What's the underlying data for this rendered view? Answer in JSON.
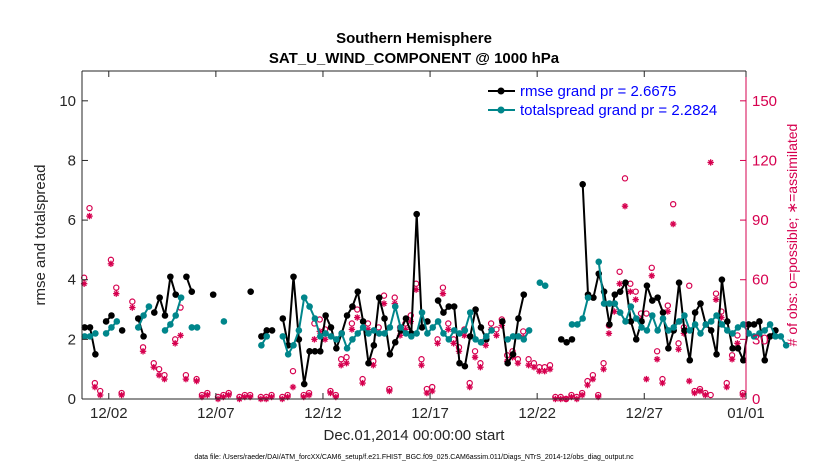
{
  "chart_data": {
    "type": "line",
    "title_line1": "Southern Hemisphere",
    "title_line2": "SAT_U_WIND_COMPONENT @ 1000 hPa",
    "xlabel": "Dec.01,2014 00:00:00 start",
    "ylabel_left": "rmse and totalspread",
    "ylabel_right": "# of obs: o=possible; ∗=assimilated",
    "footer": "data file: /Users/raeder/DAI/ATM_forcXX/CAM6_setup/f.e21.FHIST_BGC.f09_025.CAM6assim.011/Diags_NTrS_2014-12/obs_diag_output.nc",
    "xlim": [
      0.5,
      31.5
    ],
    "ylim_left": [
      0,
      11
    ],
    "ylim_right": [
      0,
      165
    ],
    "x_ticks": [
      1.75,
      6.75,
      11.75,
      16.75,
      21.75,
      26.75,
      31.75
    ],
    "x_tick_labels": [
      "12/02",
      "12/07",
      "12/12",
      "12/17",
      "12/22",
      "12/27",
      "01/01"
    ],
    "y_ticks_left": [
      0,
      2,
      4,
      6,
      8,
      10
    ],
    "y_tick_labels_left": [
      "0",
      "2",
      "4",
      "6",
      "8",
      "10"
    ],
    "y_ticks_right": [
      0,
      30,
      60,
      90,
      120,
      150
    ],
    "y_tick_labels_right": [
      "0",
      "30",
      "60",
      "90",
      "120",
      "150"
    ],
    "colors": {
      "rmse": "#000000",
      "spread": "#00868b",
      "obs": "#d6004f",
      "legend_text": "#0000ff"
    },
    "series": [
      {
        "name": "rmse grand pr = 2.6675",
        "color": "#000000",
        "values": [
          2.4,
          2.4,
          1.5,
          null,
          2.6,
          2.8,
          null,
          2.3,
          null,
          null,
          2.7,
          2.1,
          null,
          2.9,
          3.4,
          2.8,
          4.1,
          3.5,
          null,
          4.1,
          3.6,
          null,
          null,
          null,
          3.5,
          null,
          null,
          null,
          null,
          null,
          null,
          3.6,
          null,
          2.1,
          2.3,
          2.3,
          null,
          2.7,
          1.8,
          4.1,
          2.0,
          0.5,
          1.6,
          1.6,
          1.6,
          2.8,
          2.4,
          1.7,
          2.2,
          2.8,
          3.1,
          3.6,
          2.6,
          1.2,
          1.8,
          3.4,
          2.7,
          1.5,
          1.9,
          2.3,
          2.7,
          2.2,
          6.2,
          2.4,
          2.6,
          null,
          3.3,
          2.9,
          3.1,
          3.1,
          1.2,
          1.1,
          2.1,
          3.0,
          2.4,
          2.0,
          null,
          null,
          2.6,
          1.2,
          1.5,
          2.7,
          3.5,
          null,
          null,
          null,
          null,
          null,
          null,
          2.0,
          1.9,
          2.0,
          null,
          7.2,
          3.5,
          3.4,
          4.2,
          3.6,
          2.5,
          3.5,
          3.6,
          3.9,
          2.6,
          2.0,
          2.6,
          3.8,
          3.3,
          3.4,
          2.9,
          1.7,
          2.3,
          3.9,
          2.3,
          1.3,
          2.9,
          3.2,
          2.5,
          2.3,
          1.5,
          4.0,
          2.6,
          1.7,
          1.7,
          1.3,
          2.5,
          2.5,
          2.6,
          1.3,
          2.1,
          2.3
        ]
      },
      {
        "name": "totalspread grand pr = 2.2824",
        "color": "#00868b",
        "values": [
          2.1,
          2.1,
          2.2,
          null,
          2.2,
          2.4,
          2.6,
          null,
          null,
          null,
          2.4,
          2.8,
          3.1,
          null,
          null,
          2.3,
          2.5,
          2.8,
          3.4,
          null,
          2.4,
          2.4,
          null,
          null,
          null,
          null,
          2.6,
          null,
          null,
          null,
          null,
          null,
          null,
          1.8,
          2.1,
          null,
          null,
          2.1,
          1.5,
          1.8,
          2.3,
          3.4,
          3.1,
          2.7,
          2.1,
          2.2,
          2.1,
          2.0,
          2.2,
          1.7,
          2.0,
          2.2,
          2.4,
          2.2,
          2.3,
          2.2,
          2.2,
          2.4,
          3.1,
          2.4,
          2.2,
          2.1,
          2.2,
          2.9,
          2.2,
          2.4,
          2.6,
          2.2,
          2.0,
          2.3,
          2.2,
          2.3,
          2.9,
          2.0,
          1.9,
          2.1,
          2.3,
          null,
          null,
          2.0,
          2.1,
          2.1,
          2.0,
          2.3,
          null,
          3.9,
          3.8,
          null,
          null,
          null,
          null,
          2.5,
          2.5,
          2.7,
          3.4,
          null,
          4.6,
          3.2,
          3.2,
          3.2,
          2.9,
          2.6,
          3.1,
          2.7,
          2.4,
          2.3,
          2.8,
          2.3,
          2.7,
          2.3,
          2.4,
          2.6,
          2.8,
          2.3,
          2.5,
          2.2,
          2.5,
          2.6,
          2.8,
          2.5,
          2.3,
          2.2,
          2.4,
          2.5,
          2.2,
          2.1,
          2.2,
          2.3,
          2.5,
          2.1,
          2.1,
          1.8
        ]
      }
    ],
    "obs_possible": [
      [
        0.6,
        61
      ],
      [
        0.85,
        96
      ],
      [
        1.1,
        8
      ],
      [
        1.35,
        4
      ],
      [
        1.85,
        70
      ],
      [
        2.1,
        56
      ],
      [
        2.35,
        3
      ],
      [
        2.85,
        49
      ],
      [
        3.35,
        26
      ],
      [
        3.85,
        18
      ],
      [
        4.1,
        15
      ],
      [
        4.35,
        12
      ],
      [
        4.85,
        30
      ],
      [
        5.1,
        46
      ],
      [
        5.35,
        12
      ],
      [
        5.85,
        10
      ],
      [
        6.1,
        2
      ],
      [
        6.35,
        3
      ],
      [
        6.85,
        1
      ],
      [
        7.1,
        2
      ],
      [
        7.35,
        3
      ],
      [
        7.85,
        1
      ],
      [
        8.1,
        2
      ],
      [
        8.35,
        2
      ],
      [
        8.85,
        1
      ],
      [
        9.1,
        1
      ],
      [
        9.35,
        2
      ],
      [
        9.85,
        1
      ],
      [
        10.1,
        2
      ],
      [
        10.35,
        14
      ],
      [
        10.85,
        2
      ],
      [
        11.1,
        3
      ],
      [
        11.35,
        38
      ],
      [
        11.6,
        40
      ],
      [
        11.85,
        35
      ],
      [
        12.1,
        4
      ],
      [
        12.35,
        2
      ],
      [
        12.6,
        20
      ],
      [
        12.85,
        21
      ],
      [
        13.1,
        38
      ],
      [
        13.35,
        45
      ],
      [
        13.6,
        10
      ],
      [
        13.85,
        38
      ],
      [
        14.1,
        19
      ],
      [
        14.35,
        36
      ],
      [
        14.6,
        52
      ],
      [
        14.85,
        5
      ],
      [
        15.1,
        51
      ],
      [
        15.35,
        36
      ],
      [
        15.6,
        38
      ],
      [
        15.85,
        42
      ],
      [
        16.1,
        58
      ],
      [
        16.35,
        20
      ],
      [
        16.6,
        5
      ],
      [
        16.85,
        6
      ],
      [
        17.1,
        30
      ],
      [
        17.35,
        56
      ],
      [
        17.6,
        38
      ],
      [
        17.85,
        30
      ],
      [
        18.1,
        26
      ],
      [
        18.35,
        35
      ],
      [
        18.6,
        8
      ],
      [
        18.85,
        24
      ],
      [
        19.1,
        18
      ],
      [
        19.35,
        30
      ],
      [
        19.6,
        38
      ],
      [
        19.85,
        35
      ],
      [
        20.1,
        40
      ],
      [
        20.35,
        22
      ],
      [
        20.6,
        24
      ],
      [
        20.85,
        20
      ],
      [
        21.1,
        34
      ],
      [
        21.35,
        20
      ],
      [
        21.6,
        18
      ],
      [
        21.85,
        16
      ],
      [
        22.1,
        16
      ],
      [
        22.35,
        17
      ],
      [
        22.6,
        1
      ],
      [
        22.85,
        1
      ],
      [
        23.1,
        0
      ],
      [
        23.35,
        2
      ],
      [
        23.6,
        1
      ],
      [
        23.85,
        3
      ],
      [
        24.1,
        9
      ],
      [
        24.35,
        12
      ],
      [
        24.6,
        2
      ],
      [
        24.85,
        18
      ],
      [
        25.1,
        37
      ],
      [
        25.35,
        48
      ],
      [
        25.6,
        64
      ],
      [
        25.85,
        111
      ],
      [
        26.1,
        58
      ],
      [
        26.35,
        54
      ],
      [
        26.6,
        43
      ],
      [
        26.85,
        43
      ],
      [
        27.1,
        66
      ],
      [
        27.35,
        24
      ],
      [
        27.6,
        10
      ],
      [
        27.85,
        47
      ],
      [
        28.1,
        98
      ],
      [
        28.35,
        28
      ],
      [
        28.6,
        36
      ],
      [
        28.85,
        57
      ],
      [
        29.1,
        4
      ],
      [
        29.35,
        5
      ],
      [
        29.6,
        3
      ],
      [
        29.85,
        2
      ],
      [
        30.1,
        53
      ],
      [
        30.35,
        44
      ],
      [
        30.6,
        8
      ],
      [
        30.85,
        22
      ],
      [
        31.1,
        32
      ],
      [
        31.35,
        3
      ]
    ],
    "obs_assimilated": [
      [
        0.6,
        58
      ],
      [
        0.85,
        92
      ],
      [
        1.1,
        6
      ],
      [
        1.35,
        2
      ],
      [
        1.85,
        68
      ],
      [
        2.1,
        53
      ],
      [
        2.35,
        2
      ],
      [
        2.85,
        46
      ],
      [
        3.35,
        24
      ],
      [
        3.85,
        16
      ],
      [
        4.1,
        12
      ],
      [
        4.35,
        10
      ],
      [
        4.85,
        28
      ],
      [
        5.1,
        32
      ],
      [
        5.35,
        10
      ],
      [
        5.85,
        9
      ],
      [
        6.1,
        1
      ],
      [
        6.35,
        2
      ],
      [
        6.85,
        0
      ],
      [
        7.1,
        1
      ],
      [
        7.35,
        2
      ],
      [
        7.85,
        0
      ],
      [
        8.1,
        1
      ],
      [
        8.35,
        1
      ],
      [
        8.85,
        0
      ],
      [
        9.1,
        0
      ],
      [
        9.35,
        1
      ],
      [
        9.85,
        0
      ],
      [
        10.1,
        1
      ],
      [
        10.35,
        6
      ],
      [
        10.85,
        1
      ],
      [
        11.1,
        2
      ],
      [
        11.35,
        30
      ],
      [
        11.6,
        34
      ],
      [
        11.85,
        30
      ],
      [
        12.1,
        3
      ],
      [
        12.35,
        1
      ],
      [
        12.6,
        17
      ],
      [
        12.85,
        18
      ],
      [
        13.1,
        35
      ],
      [
        13.35,
        41
      ],
      [
        13.6,
        8
      ],
      [
        13.85,
        35
      ],
      [
        14.1,
        17
      ],
      [
        14.35,
        33
      ],
      [
        14.6,
        48
      ],
      [
        14.85,
        4
      ],
      [
        15.1,
        48
      ],
      [
        15.35,
        32
      ],
      [
        15.6,
        35
      ],
      [
        15.85,
        39
      ],
      [
        16.1,
        55
      ],
      [
        16.35,
        17
      ],
      [
        16.6,
        3
      ],
      [
        16.85,
        4
      ],
      [
        17.1,
        28
      ],
      [
        17.35,
        53
      ],
      [
        17.6,
        35
      ],
      [
        17.85,
        28
      ],
      [
        18.1,
        24
      ],
      [
        18.35,
        32
      ],
      [
        18.6,
        6
      ],
      [
        18.85,
        21
      ],
      [
        19.1,
        16
      ],
      [
        19.35,
        27
      ],
      [
        19.6,
        35
      ],
      [
        19.85,
        32
      ],
      [
        20.1,
        37
      ],
      [
        20.35,
        19
      ],
      [
        20.6,
        21
      ],
      [
        20.85,
        18
      ],
      [
        21.1,
        31
      ],
      [
        21.35,
        17
      ],
      [
        21.6,
        16
      ],
      [
        21.85,
        14
      ],
      [
        22.1,
        14
      ],
      [
        22.35,
        15
      ],
      [
        22.6,
        0
      ],
      [
        22.85,
        0
      ],
      [
        23.1,
        0
      ],
      [
        23.35,
        1
      ],
      [
        23.6,
        0
      ],
      [
        23.85,
        2
      ],
      [
        24.1,
        7
      ],
      [
        24.35,
        10
      ],
      [
        24.6,
        1
      ],
      [
        24.85,
        15
      ],
      [
        25.1,
        33
      ],
      [
        25.35,
        44
      ],
      [
        25.6,
        58
      ],
      [
        25.85,
        97
      ],
      [
        26.1,
        54
      ],
      [
        26.35,
        50
      ],
      [
        26.6,
        40
      ],
      [
        26.85,
        10
      ],
      [
        27.1,
        62
      ],
      [
        27.35,
        20
      ],
      [
        27.6,
        8
      ],
      [
        27.85,
        44
      ],
      [
        28.1,
        88
      ],
      [
        28.35,
        25
      ],
      [
        28.6,
        33
      ],
      [
        28.85,
        9
      ],
      [
        29.1,
        3
      ],
      [
        29.35,
        4
      ],
      [
        29.6,
        2
      ],
      [
        29.85,
        119
      ],
      [
        30.1,
        50
      ],
      [
        30.35,
        41
      ],
      [
        30.6,
        6
      ],
      [
        30.85,
        20
      ],
      [
        31.1,
        28
      ],
      [
        31.35,
        2
      ]
    ],
    "legend": [
      "rmse grand pr = 2.6675",
      "totalspread grand pr = 2.2824"
    ],
    "legend_position": "top-right",
    "grid": false
  }
}
